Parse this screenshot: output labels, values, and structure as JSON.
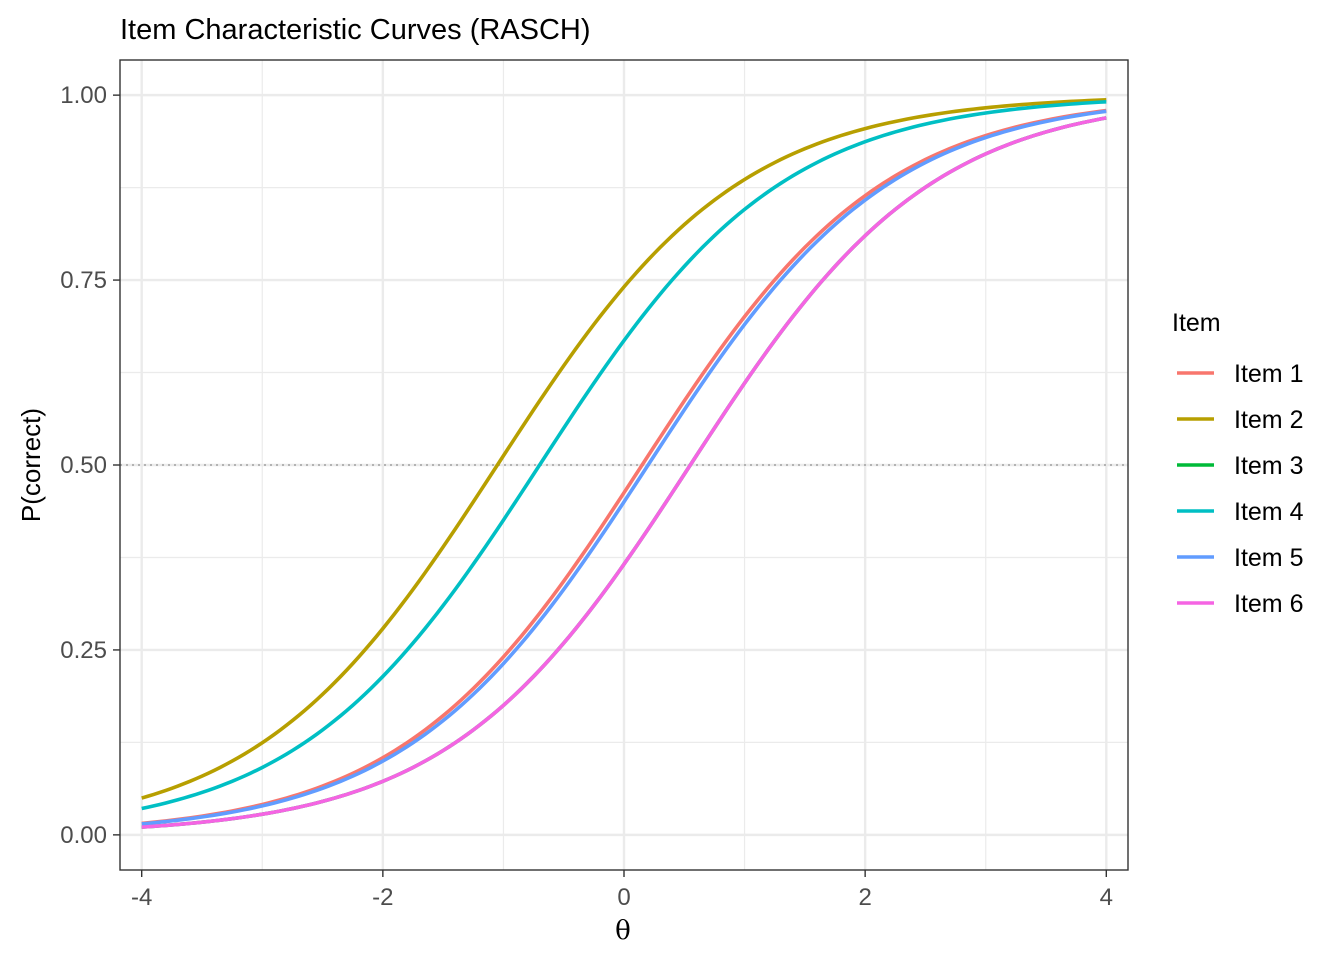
{
  "chart_data": {
    "type": "line",
    "title": "Item Characteristic Curves (RASCH)",
    "xlabel": "θ",
    "ylabel": "P(correct)",
    "xlim": [
      -4.18,
      4.18
    ],
    "ylim": [
      -0.0475,
      1.0475
    ],
    "x_ticks": [
      -4,
      -2,
      0,
      2,
      4
    ],
    "x_tick_labels": [
      "-4",
      "-2",
      "0",
      "2",
      "4"
    ],
    "y_ticks": [
      0,
      0.25,
      0.5,
      0.75,
      1.0
    ],
    "y_tick_labels": [
      "0.00",
      "0.25",
      "0.50",
      "0.75",
      "1.00"
    ],
    "grid": true,
    "reference_line": {
      "y": 0.5,
      "style": "dotted",
      "color": "#b3b3b3"
    },
    "legend": {
      "title": "Item",
      "position": "right"
    },
    "model": "P = 1 / (1 + exp(-(theta - difficulty)))",
    "x": [
      -4,
      -3.5,
      -3,
      -2.5,
      -2,
      -1.5,
      -1,
      -0.5,
      0,
      0.5,
      1,
      1.5,
      2,
      2.5,
      3,
      3.5,
      4
    ],
    "series": [
      {
        "name": "Item 1",
        "color": "#F8766D",
        "difficulty": 0.15,
        "values": [
          0.0155,
          0.0254,
          0.0416,
          0.0674,
          0.1043,
          0.1611,
          0.2428,
          0.3452,
          0.4626,
          0.5866,
          0.7008,
          0.7941,
          0.8641,
          0.9128,
          0.9454,
          0.9664,
          0.9792
        ]
      },
      {
        "name": "Item 2",
        "color": "#B79F00",
        "difficulty": -1.05,
        "values": [
          0.0497,
          0.0792,
          0.1228,
          0.1869,
          0.2789,
          0.3894,
          0.5125,
          0.6341,
          0.7398,
          0.8241,
          0.8863,
          0.9276,
          0.9532,
          0.9707,
          0.9815,
          0.9887,
          0.9929
        ]
      },
      {
        "name": "Item 3",
        "color": "#00BA38",
        "difficulty": 0.55,
        "values": [
          0.0105,
          0.0173,
          0.0285,
          0.0467,
          0.0754,
          0.1192,
          0.1819,
          0.267,
          0.3683,
          0.4875,
          0.6107,
          0.7231,
          0.81,
          0.8771,
          0.9206,
          0.9503,
          0.9692
        ]
      },
      {
        "name": "Item 4",
        "color": "#00BFC4",
        "difficulty": -0.7,
        "values": [
          0.0356,
          0.058,
          0.0914,
          0.1408,
          0.2142,
          0.3105,
          0.4254,
          0.5498,
          0.6682,
          0.7692,
          0.8455,
          0.9004,
          0.9369,
          0.9608,
          0.9757,
          0.9851,
          0.991
        ]
      },
      {
        "name": "Item 5",
        "color": "#619CFF",
        "difficulty": 0.2,
        "values": [
          0.0148,
          0.0243,
          0.0399,
          0.0646,
          0.1003,
          0.1562,
          0.2338,
          0.3345,
          0.4502,
          0.5742,
          0.6905,
          0.7859,
          0.8581,
          0.9089,
          0.9427,
          0.9646,
          0.9779
        ]
      },
      {
        "name": "Item 6",
        "color": "#F564E3",
        "difficulty": 0.55,
        "values": [
          0.0102,
          0.017,
          0.0281,
          0.0462,
          0.0746,
          0.1182,
          0.1812,
          0.2662,
          0.3675,
          0.4866,
          0.6099,
          0.7227,
          0.8097,
          0.8768,
          0.9204,
          0.9501,
          0.969
        ]
      }
    ]
  }
}
